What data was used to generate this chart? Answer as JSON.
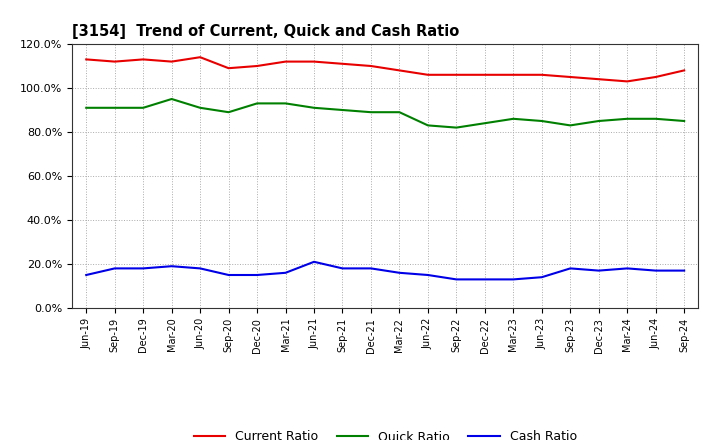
{
  "title": "[3154]  Trend of Current, Quick and Cash Ratio",
  "x_labels": [
    "Jun-19",
    "Sep-19",
    "Dec-19",
    "Mar-20",
    "Jun-20",
    "Sep-20",
    "Dec-20",
    "Mar-21",
    "Jun-21",
    "Sep-21",
    "Dec-21",
    "Mar-22",
    "Jun-22",
    "Sep-22",
    "Dec-22",
    "Mar-23",
    "Jun-23",
    "Sep-23",
    "Dec-23",
    "Mar-24",
    "Jun-24",
    "Sep-24"
  ],
  "current_ratio": [
    113,
    112,
    113,
    112,
    114,
    109,
    110,
    112,
    112,
    111,
    110,
    108,
    106,
    106,
    106,
    106,
    106,
    105,
    104,
    103,
    105,
    108
  ],
  "quick_ratio": [
    91,
    91,
    91,
    95,
    91,
    89,
    93,
    93,
    91,
    90,
    89,
    89,
    83,
    82,
    84,
    86,
    85,
    83,
    85,
    86,
    86,
    85
  ],
  "cash_ratio": [
    15,
    18,
    18,
    19,
    18,
    15,
    15,
    16,
    21,
    18,
    18,
    16,
    15,
    13,
    13,
    13,
    14,
    18,
    17,
    18,
    17,
    17
  ],
  "current_color": "#e80000",
  "quick_color": "#008000",
  "cash_color": "#0000e8",
  "ylim": [
    0,
    120
  ],
  "yticks": [
    0,
    20,
    40,
    60,
    80,
    100,
    120
  ],
  "ytick_labels": [
    "0.0%",
    "20.0%",
    "40.0%",
    "60.0%",
    "80.0%",
    "100.0%",
    "120.0%"
  ],
  "background_color": "#ffffff",
  "plot_bg_color": "#ffffff",
  "grid_color": "#aaaaaa",
  "legend_entries": [
    "Current Ratio",
    "Quick Ratio",
    "Cash Ratio"
  ]
}
